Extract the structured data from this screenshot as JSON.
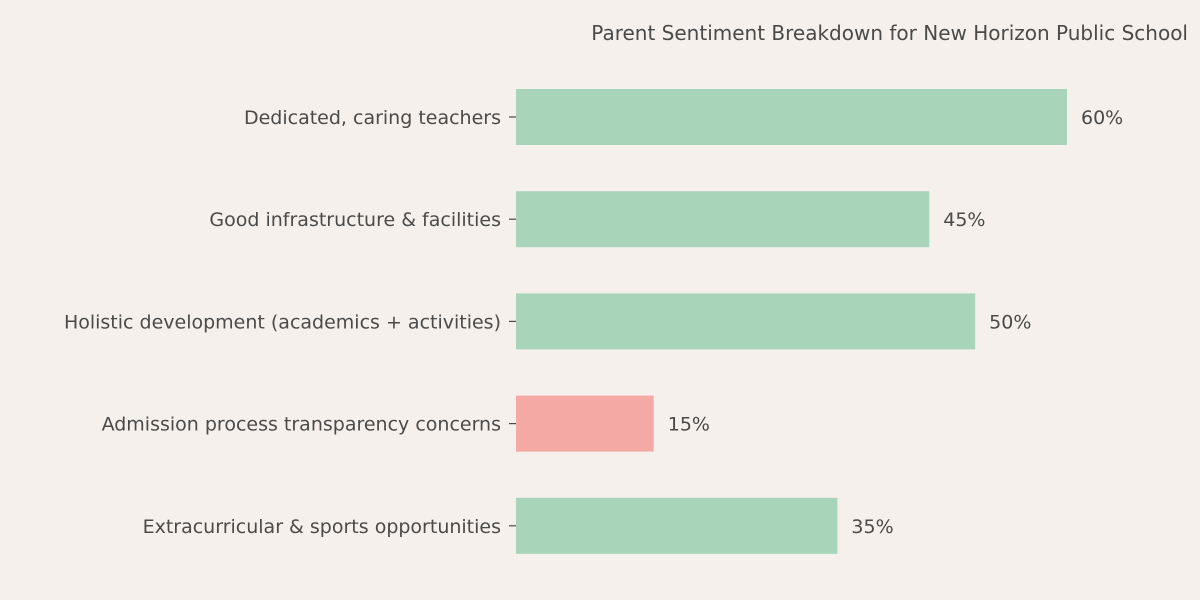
{
  "chart_data": {
    "type": "bar",
    "orientation": "horizontal",
    "title": "Parent Sentiment Breakdown for New Horizon Public School",
    "categories": [
      "Dedicated, caring teachers",
      "Good infrastructure & facilities",
      "Holistic development (academics + activities)",
      "Admission process transparency concerns",
      "Extracurricular & sports opportunities"
    ],
    "values": [
      60,
      45,
      50,
      15,
      35
    ],
    "value_labels": [
      "60%",
      "45%",
      "50%",
      "15%",
      "35%"
    ],
    "sentiment": [
      "positive",
      "positive",
      "positive",
      "negative",
      "positive"
    ],
    "colors": {
      "positive": "#a8d5b9",
      "negative": "#f4a9a5",
      "background": "#f5f0ec",
      "text": "#4a4a4a"
    },
    "xlim": [
      0,
      60
    ],
    "grid": false,
    "axes_visible": false,
    "legend": "none"
  }
}
